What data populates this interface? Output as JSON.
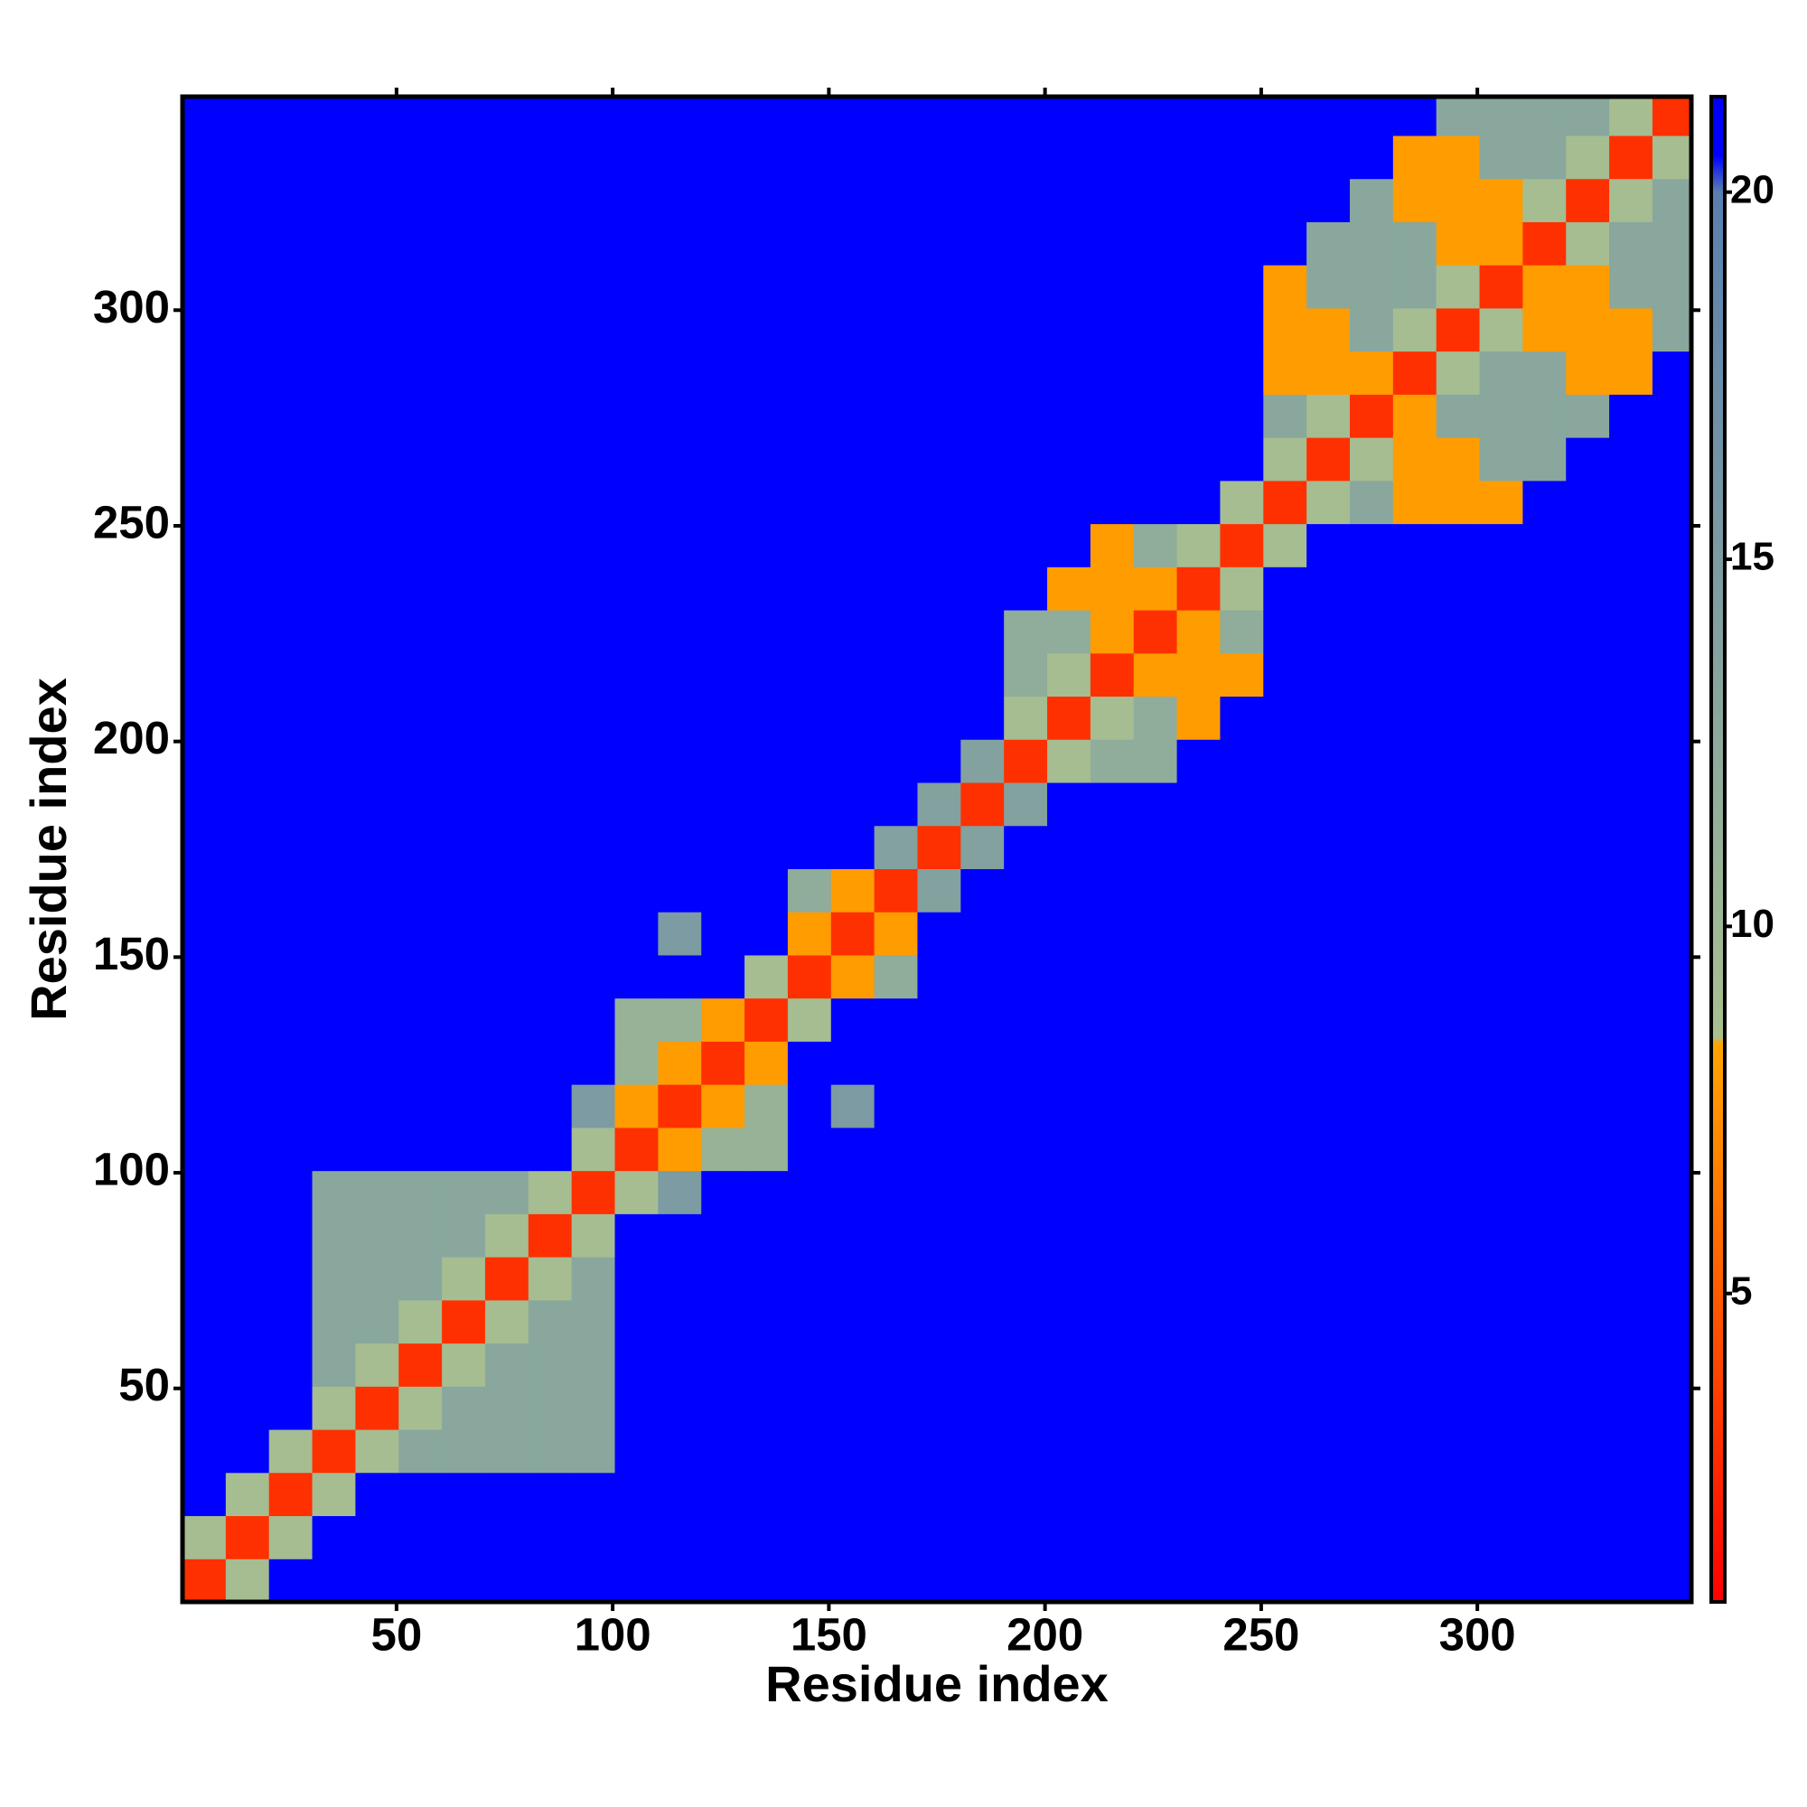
{
  "chart_data": {
    "type": "heatmap",
    "xlabel": "Residue index",
    "ylabel": "Residue index",
    "xlim": [
      0.5,
      349.5
    ],
    "ylim": [
      0.5,
      349.5
    ],
    "xticks": [
      50,
      100,
      150,
      200,
      250,
      300
    ],
    "yticks": [
      50,
      100,
      150,
      200,
      250,
      300
    ],
    "xbins": [
      0.5,
      10.5,
      20.5,
      30.5,
      40.5,
      50.5,
      60.5,
      70.5,
      80.5,
      90.5,
      100.5,
      110.5,
      120.5,
      130.5,
      140.5,
      150.5,
      160.5,
      170.5,
      180.5,
      190.5,
      200.5,
      210.5,
      220.5,
      230.5,
      240.5,
      250.5,
      260.5,
      270.5,
      280.5,
      290.5,
      300.5,
      310.5,
      320.5,
      330.5,
      340.5,
      349.5
    ],
    "ybins": [
      0.5,
      10.5,
      20.5,
      30.5,
      40.5,
      50.5,
      60.5,
      70.5,
      80.5,
      90.5,
      100.5,
      110.5,
      120.5,
      130.5,
      140.5,
      150.5,
      160.5,
      170.5,
      180.5,
      190.5,
      200.5,
      210.5,
      220.5,
      230.5,
      240.5,
      250.5,
      260.5,
      270.5,
      280.5,
      290.5,
      300.5,
      310.5,
      320.5,
      330.5,
      340.5,
      349.5
    ],
    "zlim": [
      0.8,
      21.3
    ],
    "zticks": [
      5,
      10,
      15,
      20
    ],
    "colorscale": [
      [
        0.8,
        "#ff0000"
      ],
      [
        8.4,
        "#ffa500"
      ],
      [
        8.5,
        "#a8c090"
      ],
      [
        20,
        "#5a7fb0"
      ],
      [
        20.5,
        "#0000ff"
      ],
      [
        21.3,
        "#0000ff"
      ]
    ],
    "z": [
      [
        3,
        9,
        21,
        21,
        21,
        21,
        21,
        21,
        21,
        21,
        21,
        21,
        21,
        21,
        21,
        21,
        21,
        21,
        21,
        21,
        21,
        21,
        21,
        21,
        21,
        21,
        21,
        21,
        21,
        21,
        21,
        21,
        21,
        21,
        21
      ],
      [
        9,
        3,
        9,
        21,
        21,
        21,
        21,
        21,
        21,
        21,
        21,
        21,
        21,
        21,
        21,
        21,
        21,
        21,
        21,
        21,
        21,
        21,
        21,
        21,
        21,
        21,
        21,
        21,
        21,
        21,
        21,
        21,
        21,
        21,
        21
      ],
      [
        21,
        9,
        3,
        9,
        21,
        21,
        21,
        21,
        21,
        21,
        21,
        21,
        21,
        21,
        21,
        21,
        21,
        21,
        21,
        21,
        21,
        21,
        21,
        21,
        21,
        21,
        21,
        21,
        21,
        21,
        21,
        21,
        21,
        21,
        21
      ],
      [
        21,
        21,
        9,
        3,
        9,
        13,
        13,
        13,
        13,
        13,
        21,
        21,
        21,
        21,
        21,
        21,
        21,
        21,
        21,
        21,
        21,
        21,
        21,
        21,
        21,
        21,
        21,
        21,
        21,
        21,
        21,
        21,
        21,
        21,
        21
      ],
      [
        21,
        21,
        21,
        9,
        3,
        9,
        13,
        13,
        13,
        13,
        21,
        21,
        21,
        21,
        21,
        21,
        21,
        21,
        21,
        21,
        21,
        21,
        21,
        21,
        21,
        21,
        21,
        21,
        21,
        21,
        21,
        21,
        21,
        21,
        21
      ],
      [
        21,
        21,
        21,
        13,
        9,
        3,
        9,
        13,
        13,
        13,
        21,
        21,
        21,
        21,
        21,
        21,
        21,
        21,
        21,
        21,
        21,
        21,
        21,
        21,
        21,
        21,
        21,
        21,
        21,
        21,
        21,
        21,
        21,
        21,
        21
      ],
      [
        21,
        21,
        21,
        13,
        13,
        9,
        3,
        9,
        13,
        13,
        21,
        21,
        21,
        21,
        21,
        21,
        21,
        21,
        21,
        21,
        21,
        21,
        21,
        21,
        21,
        21,
        21,
        21,
        21,
        21,
        21,
        21,
        21,
        21,
        21
      ],
      [
        21,
        21,
        21,
        13,
        13,
        13,
        9,
        3,
        9,
        13,
        21,
        21,
        21,
        21,
        21,
        21,
        21,
        21,
        21,
        21,
        21,
        21,
        21,
        21,
        21,
        21,
        21,
        21,
        21,
        21,
        21,
        21,
        21,
        21,
        21
      ],
      [
        21,
        21,
        21,
        13,
        13,
        13,
        13,
        9,
        3,
        9,
        21,
        21,
        21,
        21,
        21,
        21,
        21,
        21,
        21,
        21,
        21,
        21,
        21,
        21,
        21,
        21,
        21,
        21,
        21,
        21,
        21,
        21,
        21,
        21,
        21
      ],
      [
        21,
        21,
        21,
        13,
        13,
        13,
        13,
        13,
        9,
        3,
        9,
        15,
        21,
        21,
        21,
        21,
        21,
        21,
        21,
        21,
        21,
        21,
        21,
        21,
        21,
        21,
        21,
        21,
        21,
        21,
        21,
        21,
        21,
        21,
        21
      ],
      [
        21,
        21,
        21,
        21,
        21,
        21,
        21,
        21,
        21,
        9,
        3,
        8,
        11,
        11,
        21,
        21,
        21,
        21,
        21,
        21,
        21,
        21,
        21,
        21,
        21,
        21,
        21,
        21,
        21,
        21,
        21,
        21,
        21,
        21,
        21
      ],
      [
        21,
        21,
        21,
        21,
        21,
        21,
        21,
        21,
        21,
        15,
        8,
        3,
        8,
        11,
        21,
        15,
        21,
        21,
        21,
        21,
        21,
        21,
        21,
        21,
        21,
        21,
        21,
        21,
        21,
        21,
        21,
        21,
        21,
        21,
        21
      ],
      [
        21,
        21,
        21,
        21,
        21,
        21,
        21,
        21,
        21,
        21,
        11,
        8,
        3,
        8,
        21,
        21,
        21,
        21,
        21,
        21,
        21,
        21,
        21,
        21,
        21,
        21,
        21,
        21,
        21,
        21,
        21,
        21,
        21,
        21,
        21
      ],
      [
        21,
        21,
        21,
        21,
        21,
        21,
        21,
        21,
        21,
        21,
        11,
        11,
        8,
        3,
        9,
        21,
        21,
        21,
        21,
        21,
        21,
        21,
        21,
        21,
        21,
        21,
        21,
        21,
        21,
        21,
        21,
        21,
        21,
        21,
        21
      ],
      [
        21,
        21,
        21,
        21,
        21,
        21,
        21,
        21,
        21,
        21,
        21,
        21,
        21,
        9,
        3,
        8,
        12,
        21,
        21,
        21,
        21,
        21,
        21,
        21,
        21,
        21,
        21,
        21,
        21,
        21,
        21,
        21,
        21,
        21,
        21
      ],
      [
        21,
        21,
        21,
        21,
        21,
        21,
        21,
        21,
        21,
        21,
        21,
        15,
        21,
        21,
        8,
        3,
        8,
        21,
        21,
        21,
        21,
        21,
        21,
        21,
        21,
        21,
        21,
        21,
        21,
        21,
        21,
        21,
        21,
        21,
        21
      ],
      [
        21,
        21,
        21,
        21,
        21,
        21,
        21,
        21,
        21,
        21,
        21,
        21,
        21,
        21,
        12,
        8,
        3,
        14,
        21,
        21,
        21,
        21,
        21,
        21,
        21,
        21,
        21,
        21,
        21,
        21,
        21,
        21,
        21,
        21,
        21
      ],
      [
        21,
        21,
        21,
        21,
        21,
        21,
        21,
        21,
        21,
        21,
        21,
        21,
        21,
        21,
        21,
        21,
        14,
        3,
        14,
        21,
        21,
        21,
        21,
        21,
        21,
        21,
        21,
        21,
        21,
        21,
        21,
        21,
        21,
        21,
        21
      ],
      [
        21,
        21,
        21,
        21,
        21,
        21,
        21,
        21,
        21,
        21,
        21,
        21,
        21,
        21,
        21,
        21,
        21,
        14,
        3,
        14,
        21,
        21,
        21,
        21,
        21,
        21,
        21,
        21,
        21,
        21,
        21,
        21,
        21,
        21,
        21
      ],
      [
        21,
        21,
        21,
        21,
        21,
        21,
        21,
        21,
        21,
        21,
        21,
        21,
        21,
        21,
        21,
        21,
        21,
        21,
        14,
        3,
        9,
        12,
        12,
        21,
        21,
        21,
        21,
        21,
        21,
        21,
        21,
        21,
        21,
        21,
        21
      ],
      [
        21,
        21,
        21,
        21,
        21,
        21,
        21,
        21,
        21,
        21,
        21,
        21,
        21,
        21,
        21,
        21,
        21,
        21,
        21,
        9,
        3,
        9,
        12,
        8,
        21,
        21,
        21,
        21,
        21,
        21,
        21,
        21,
        21,
        21,
        21
      ],
      [
        21,
        21,
        21,
        21,
        21,
        21,
        21,
        21,
        21,
        21,
        21,
        21,
        21,
        21,
        21,
        21,
        21,
        21,
        21,
        12,
        9,
        3,
        8,
        8,
        8,
        21,
        21,
        21,
        21,
        21,
        21,
        21,
        21,
        21,
        21
      ],
      [
        21,
        21,
        21,
        21,
        21,
        21,
        21,
        21,
        21,
        21,
        21,
        21,
        21,
        21,
        21,
        21,
        21,
        21,
        21,
        12,
        12,
        8,
        3,
        8,
        12,
        21,
        21,
        21,
        21,
        21,
        21,
        21,
        21,
        21,
        21
      ],
      [
        21,
        21,
        21,
        21,
        21,
        21,
        21,
        21,
        21,
        21,
        21,
        21,
        21,
        21,
        21,
        21,
        21,
        21,
        21,
        21,
        8,
        8,
        8,
        3,
        9,
        21,
        21,
        21,
        21,
        21,
        21,
        21,
        21,
        21,
        21
      ],
      [
        21,
        21,
        21,
        21,
        21,
        21,
        21,
        21,
        21,
        21,
        21,
        21,
        21,
        21,
        21,
        21,
        21,
        21,
        21,
        21,
        21,
        8,
        12,
        9,
        3,
        9,
        21,
        21,
        21,
        21,
        21,
        21,
        21,
        21,
        21
      ],
      [
        21,
        21,
        21,
        21,
        21,
        21,
        21,
        21,
        21,
        21,
        21,
        21,
        21,
        21,
        21,
        21,
        21,
        21,
        21,
        21,
        21,
        21,
        21,
        21,
        9,
        3,
        9,
        13,
        8,
        8,
        8,
        21,
        21,
        21,
        21
      ],
      [
        21,
        21,
        21,
        21,
        21,
        21,
        21,
        21,
        21,
        21,
        21,
        21,
        21,
        21,
        21,
        21,
        21,
        21,
        21,
        21,
        21,
        21,
        21,
        21,
        21,
        9,
        3,
        9,
        8,
        8,
        13,
        13,
        21,
        21,
        21
      ],
      [
        21,
        21,
        21,
        21,
        21,
        21,
        21,
        21,
        21,
        21,
        21,
        21,
        21,
        21,
        21,
        21,
        21,
        21,
        21,
        21,
        21,
        21,
        21,
        21,
        21,
        13,
        9,
        3,
        8,
        13,
        13,
        13,
        13,
        21,
        21
      ],
      [
        21,
        21,
        21,
        21,
        21,
        21,
        21,
        21,
        21,
        21,
        21,
        21,
        21,
        21,
        21,
        21,
        21,
        21,
        21,
        21,
        21,
        21,
        21,
        21,
        21,
        8,
        8,
        8,
        3,
        9,
        13,
        13,
        8,
        8,
        21
      ],
      [
        21,
        21,
        21,
        21,
        21,
        21,
        21,
        21,
        21,
        21,
        21,
        21,
        21,
        21,
        21,
        21,
        21,
        21,
        21,
        21,
        21,
        21,
        21,
        21,
        21,
        8,
        8,
        13,
        9,
        3,
        9,
        8,
        8,
        8,
        13
      ],
      [
        21,
        21,
        21,
        21,
        21,
        21,
        21,
        21,
        21,
        21,
        21,
        21,
        21,
        21,
        21,
        21,
        21,
        21,
        21,
        21,
        21,
        21,
        21,
        21,
        21,
        8,
        13,
        13,
        13,
        9,
        3,
        8,
        8,
        13,
        13
      ],
      [
        21,
        21,
        21,
        21,
        21,
        21,
        21,
        21,
        21,
        21,
        21,
        21,
        21,
        21,
        21,
        21,
        21,
        21,
        21,
        21,
        21,
        21,
        21,
        21,
        21,
        21,
        13,
        13,
        13,
        8,
        8,
        3,
        9,
        13,
        13
      ],
      [
        21,
        21,
        21,
        21,
        21,
        21,
        21,
        21,
        21,
        21,
        21,
        21,
        21,
        21,
        21,
        21,
        21,
        21,
        21,
        21,
        21,
        21,
        21,
        21,
        21,
        21,
        21,
        13,
        8,
        8,
        8,
        9,
        3,
        9,
        13
      ],
      [
        21,
        21,
        21,
        21,
        21,
        21,
        21,
        21,
        21,
        21,
        21,
        21,
        21,
        21,
        21,
        21,
        21,
        21,
        21,
        21,
        21,
        21,
        21,
        21,
        21,
        21,
        21,
        21,
        8,
        8,
        13,
        13,
        9,
        3,
        9
      ],
      [
        21,
        21,
        21,
        21,
        21,
        21,
        21,
        21,
        21,
        21,
        21,
        21,
        21,
        21,
        21,
        21,
        21,
        21,
        21,
        21,
        21,
        21,
        21,
        21,
        21,
        21,
        21,
        21,
        21,
        13,
        13,
        13,
        13,
        9,
        3
      ]
    ]
  }
}
